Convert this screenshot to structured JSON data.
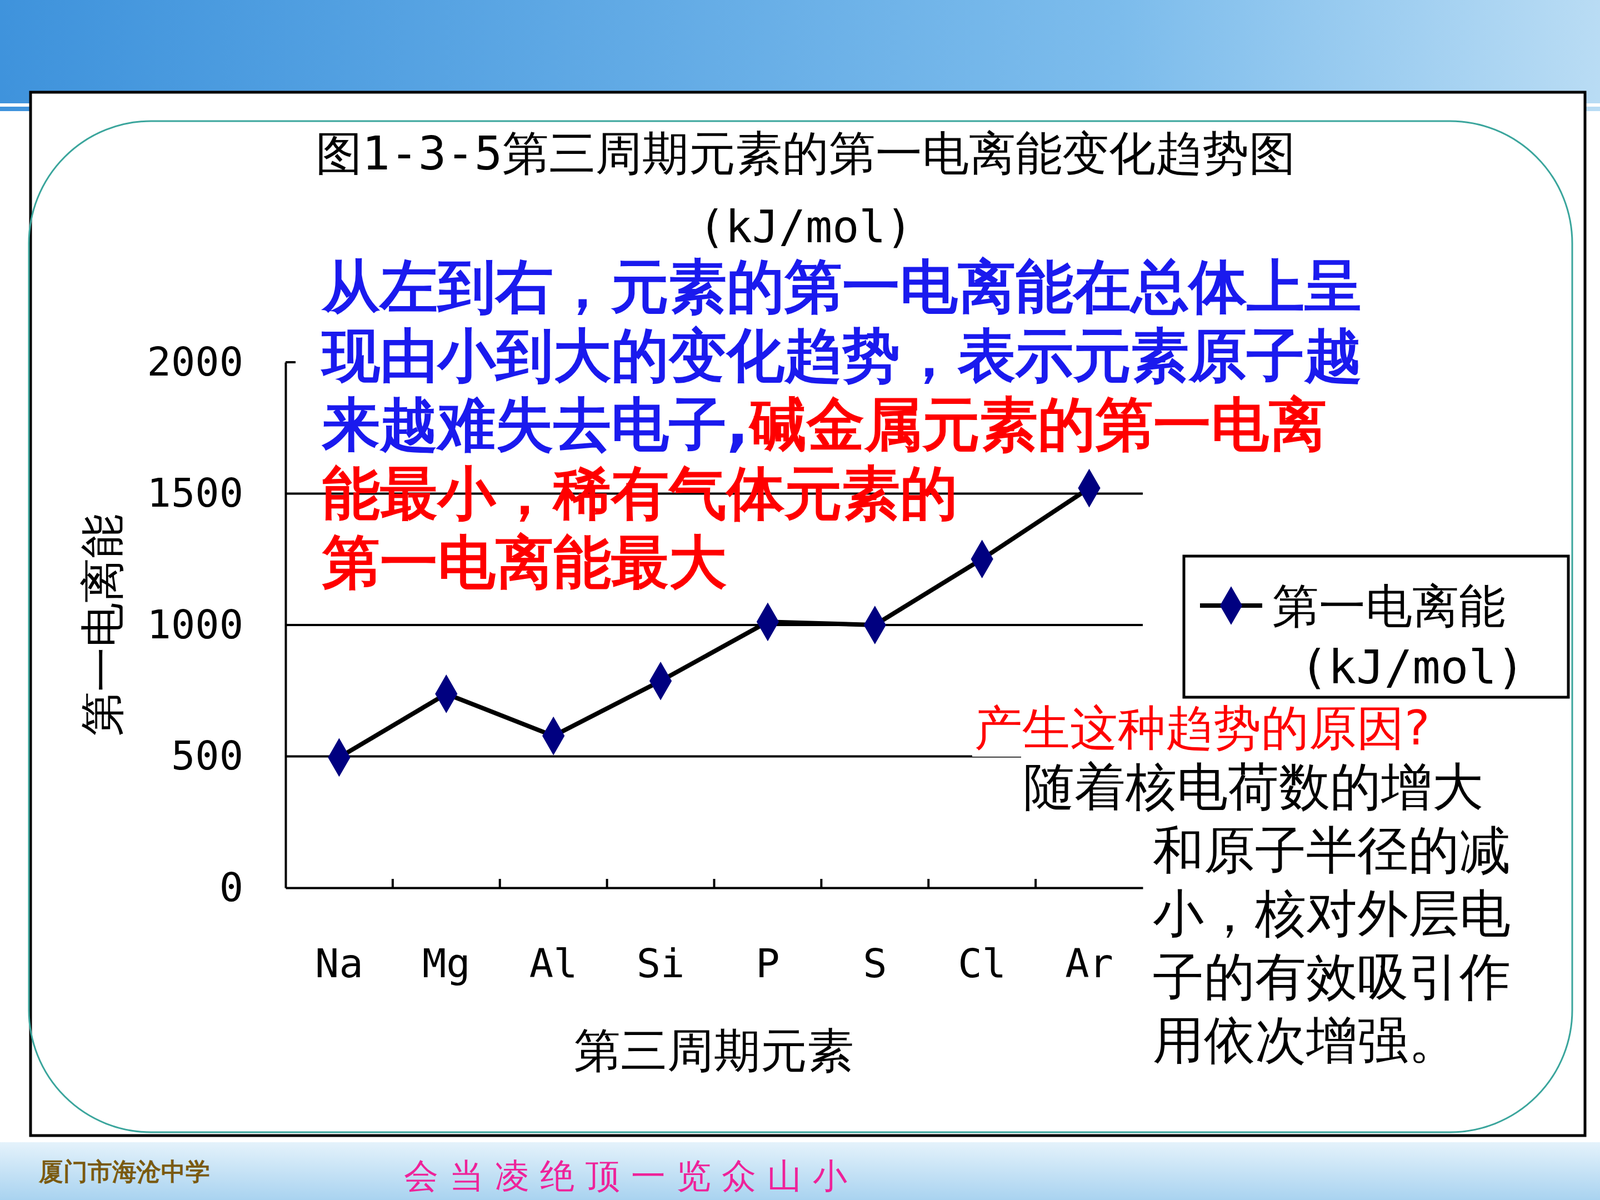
{
  "chart_data": {
    "type": "line",
    "title": "图1-3-5第三周期元素的第一电离能变化趋势图",
    "subtitle": "(kJ/mol)",
    "x_label": "第三周期元素",
    "y_label": "第一电离能",
    "categories": [
      "Na",
      "Mg",
      "Al",
      "Si",
      "P",
      "S",
      "Cl",
      "Ar"
    ],
    "series": [
      {
        "name": "第一电离能(kJ/mol)",
        "color": "#000080",
        "marker": "diamond",
        "values": [
          496,
          738,
          578,
          787,
          1012,
          1000,
          1251,
          1521
        ]
      }
    ],
    "ylim": [
      0,
      2000
    ],
    "yticks": [
      0,
      500,
      1000,
      1500,
      2000
    ],
    "grid": true,
    "legend": "right",
    "annotations": [
      {
        "text": "从左到右，元素的第一电离能在总体上呈现由小到大的变化趋势，表示元素原子越来越难失去电子,",
        "color": "#1a1aee"
      },
      {
        "text": "碱金属元素的第一电离能最小，稀有气体元素的第一电离能最大",
        "color": "#ff0000"
      },
      {
        "text": "产生这种趋势的原因?",
        "color": "#ff0000"
      },
      {
        "text": "随着核电荷数的增大和原子半径的减小，核对外层电子的有效吸引作用依次增强。",
        "color": "#000000"
      }
    ]
  },
  "footer": {
    "school": "厦门市海沧中学",
    "motto": "会 当 凌 绝 顶 一 览 众 山 小"
  }
}
